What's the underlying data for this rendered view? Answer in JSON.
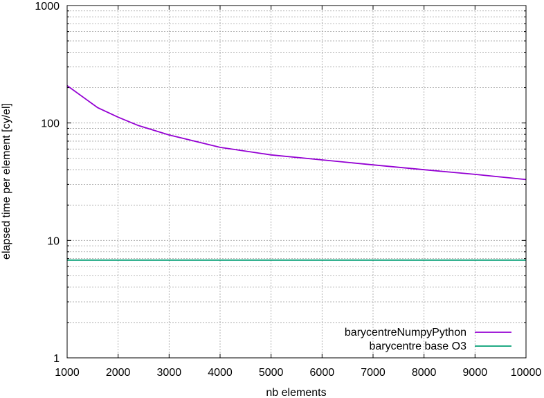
{
  "chart_data": {
    "type": "line",
    "xlabel": "nb elements",
    "ylabel": "elapsed time per element [cy/el]",
    "xlim": [
      1000,
      10000
    ],
    "ylim": [
      1,
      1000
    ],
    "yscale": "log",
    "grid": true,
    "legend_position": "bottom-right",
    "x_ticks": [
      1000,
      2000,
      3000,
      4000,
      5000,
      6000,
      7000,
      8000,
      9000,
      10000
    ],
    "x_tick_labels": [
      "1000",
      "2000",
      "3000",
      "4000",
      "5000",
      "6000",
      "7000",
      "8000",
      "9000",
      "10000"
    ],
    "y_ticks": [
      1,
      10,
      100,
      1000
    ],
    "y_tick_labels": [
      "1",
      "10",
      "100",
      "1000"
    ],
    "series": [
      {
        "name": "barycentreNumpyPython",
        "color": "#9400d3",
        "x": [
          1000,
          1600,
          2000,
          2400,
          3000,
          4000,
          5000,
          6000,
          7000,
          8000,
          9000,
          10000
        ],
        "y": [
          208,
          135,
          112,
          95,
          79,
          62,
          53.5,
          48.5,
          44,
          40,
          36.5,
          33
        ]
      },
      {
        "name": "barycentre base O3",
        "color": "#009e73",
        "x": [
          1000,
          10000
        ],
        "y": [
          6.8,
          6.8
        ]
      }
    ]
  }
}
